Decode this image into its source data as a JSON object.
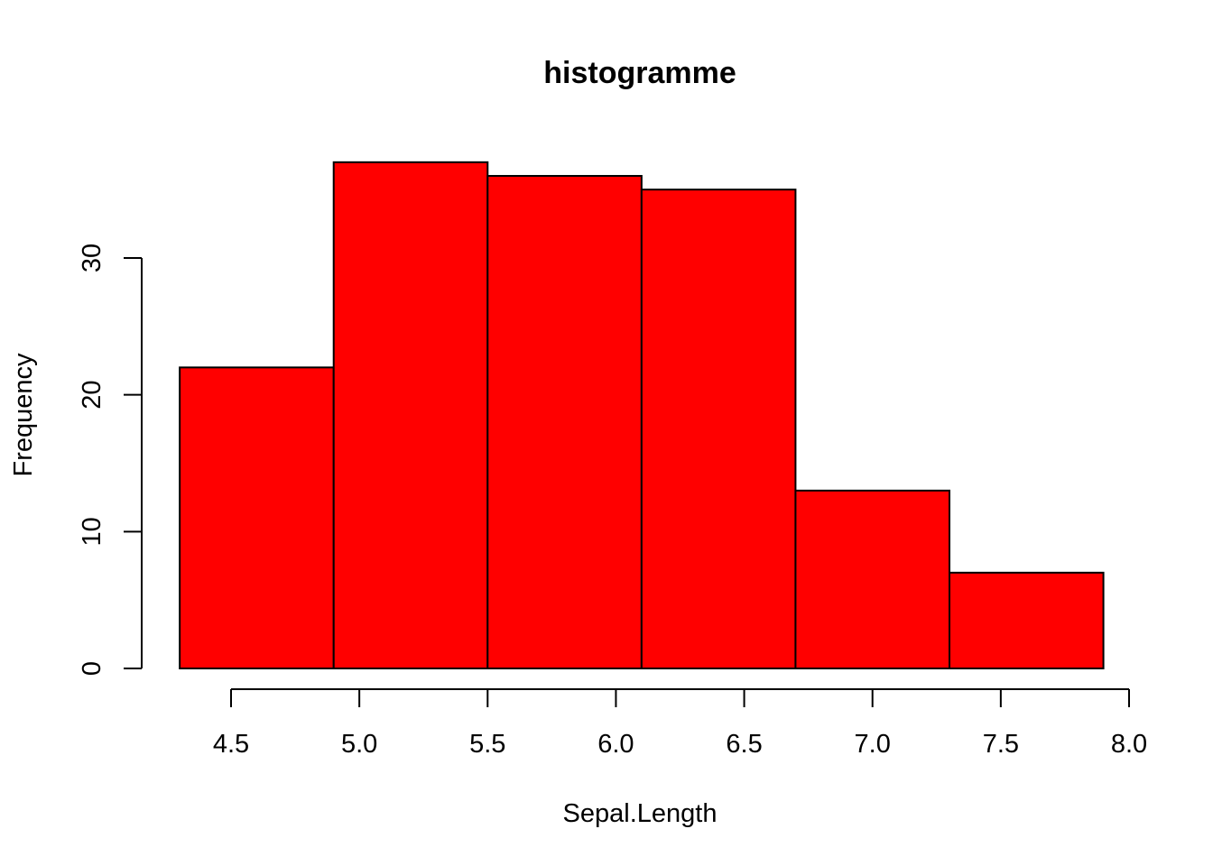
{
  "chart_data": {
    "type": "bar",
    "title": "histogramme",
    "xlabel": "Sepal.Length",
    "ylabel": "Frequency",
    "bins": [
      {
        "x0": 4.3,
        "x1": 4.9,
        "count": 22
      },
      {
        "x0": 4.9,
        "x1": 5.5,
        "count": 37
      },
      {
        "x0": 5.5,
        "x1": 6.1,
        "count": 36
      },
      {
        "x0": 6.1,
        "x1": 6.7,
        "count": 35
      },
      {
        "x0": 6.7,
        "x1": 7.3,
        "count": 13
      },
      {
        "x0": 7.3,
        "x1": 7.9,
        "count": 7
      }
    ],
    "x_ticks": [
      "4.5",
      "5.0",
      "5.5",
      "6.0",
      "6.5",
      "7.0",
      "7.5",
      "8.0"
    ],
    "y_ticks": [
      "0",
      "10",
      "20",
      "30"
    ],
    "bar_color": "#ff0000",
    "border_color": "#000000",
    "grid": false
  }
}
